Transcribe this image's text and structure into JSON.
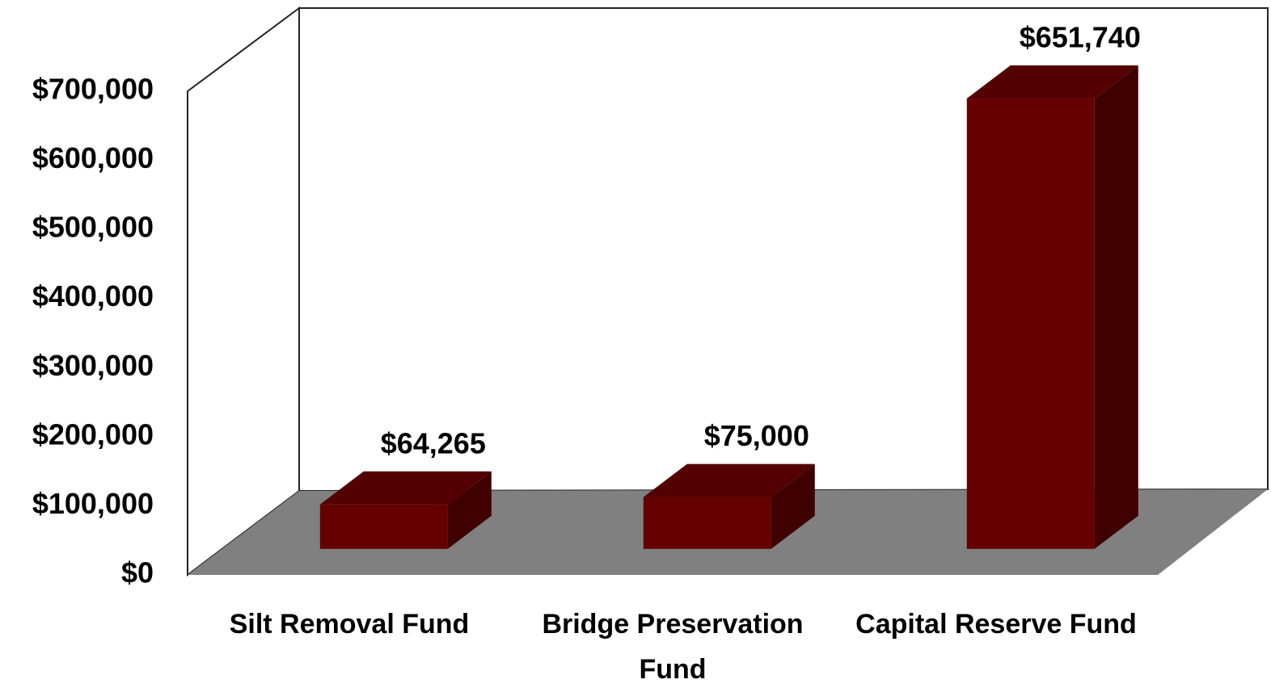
{
  "chart_data": {
    "type": "bar3d",
    "categories": [
      "Silt Removal Fund",
      "Bridge Preservation Fund",
      "Capital Reserve Fund"
    ],
    "values": [
      64265,
      75000,
      651740
    ],
    "value_labels": [
      "$64,265",
      "$75,000",
      "$651,740"
    ],
    "color": "#660000",
    "ylim": [
      0,
      700000
    ],
    "yticks": [
      {
        "value": 0,
        "label": "$0"
      },
      {
        "value": 100000,
        "label": "$100,000"
      },
      {
        "value": 200000,
        "label": "$200,000"
      },
      {
        "value": 300000,
        "label": "$300,000"
      },
      {
        "value": 400000,
        "label": "$400,000"
      },
      {
        "value": 500000,
        "label": "$500,000"
      },
      {
        "value": 600000,
        "label": "$600,000"
      },
      {
        "value": 700000,
        "label": "$700,000"
      }
    ],
    "grid": false
  }
}
